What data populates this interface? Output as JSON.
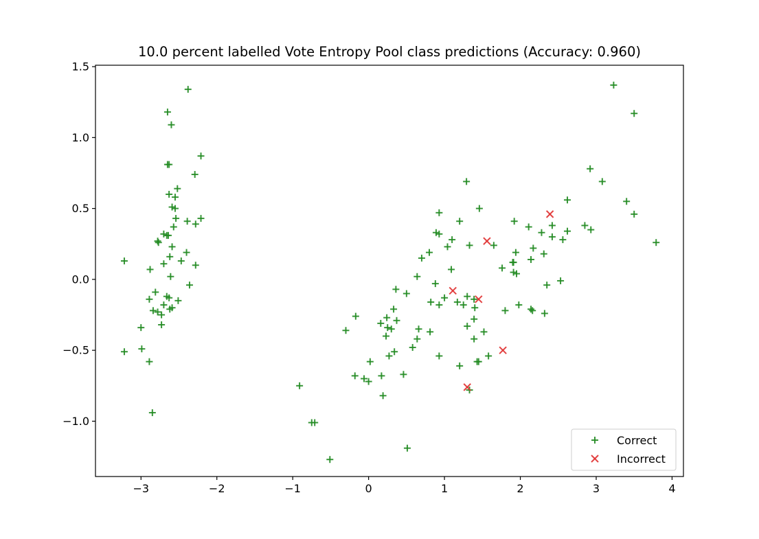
{
  "chart_data": {
    "type": "scatter",
    "title": "10.0 percent labelled Vote Entropy Pool class predictions (Accuracy: 0.960)",
    "xlabel": "",
    "ylabel": "",
    "xlim": [
      -3.6,
      4.15
    ],
    "ylim": [
      -1.39,
      1.51
    ],
    "xticks": [
      -3,
      -2,
      -1,
      0,
      1,
      2,
      3,
      4
    ],
    "xtick_labels": [
      "−3",
      "−2",
      "−1",
      "0",
      "1",
      "2",
      "3",
      "4"
    ],
    "yticks": [
      -1.0,
      -0.5,
      0.0,
      0.5,
      1.0,
      1.5
    ],
    "ytick_labels": [
      "−1.0",
      "−0.5",
      "0.0",
      "0.5",
      "1.0",
      "1.5"
    ],
    "grid": false,
    "legend_position": "lower-right",
    "series": [
      {
        "name": "Correct",
        "marker": "plus",
        "color": "#228B22",
        "points": [
          [
            -2.38,
            1.34
          ],
          [
            -2.65,
            1.18
          ],
          [
            -2.6,
            1.09
          ],
          [
            -2.21,
            0.87
          ],
          [
            -2.63,
            0.81
          ],
          [
            -2.65,
            0.81
          ],
          [
            -2.29,
            0.74
          ],
          [
            -2.52,
            0.64
          ],
          [
            -2.63,
            0.6
          ],
          [
            -2.55,
            0.58
          ],
          [
            -2.59,
            0.51
          ],
          [
            -2.55,
            0.5
          ],
          [
            -2.21,
            0.43
          ],
          [
            -2.54,
            0.43
          ],
          [
            -2.39,
            0.41
          ],
          [
            -2.28,
            0.39
          ],
          [
            -2.57,
            0.37
          ],
          [
            -2.7,
            0.32
          ],
          [
            -2.66,
            0.31
          ],
          [
            -2.64,
            0.31
          ],
          [
            -2.78,
            0.27
          ],
          [
            -2.77,
            0.26
          ],
          [
            -2.59,
            0.23
          ],
          [
            -2.4,
            0.19
          ],
          [
            -2.62,
            0.16
          ],
          [
            -2.47,
            0.13
          ],
          [
            -3.22,
            0.13
          ],
          [
            -2.7,
            0.11
          ],
          [
            -2.28,
            0.1
          ],
          [
            -2.88,
            0.07
          ],
          [
            -2.61,
            0.02
          ],
          [
            -2.36,
            -0.04
          ],
          [
            -2.81,
            -0.09
          ],
          [
            -2.66,
            -0.12
          ],
          [
            -2.63,
            -0.13
          ],
          [
            -2.89,
            -0.14
          ],
          [
            -2.51,
            -0.15
          ],
          [
            -2.7,
            -0.18
          ],
          [
            -2.59,
            -0.2
          ],
          [
            -2.62,
            -0.21
          ],
          [
            -2.84,
            -0.22
          ],
          [
            -2.78,
            -0.23
          ],
          [
            -2.73,
            -0.25
          ],
          [
            -2.73,
            -0.32
          ],
          [
            -3.0,
            -0.34
          ],
          [
            -2.99,
            -0.49
          ],
          [
            -3.22,
            -0.51
          ],
          [
            -2.89,
            -0.58
          ],
          [
            -2.85,
            -0.94
          ],
          [
            3.23,
            1.37
          ],
          [
            3.5,
            1.17
          ],
          [
            2.92,
            0.78
          ],
          [
            3.08,
            0.69
          ],
          [
            1.29,
            0.69
          ],
          [
            2.62,
            0.56
          ],
          [
            3.4,
            0.55
          ],
          [
            1.46,
            0.5
          ],
          [
            0.93,
            0.47
          ],
          [
            3.5,
            0.46
          ],
          [
            1.92,
            0.41
          ],
          [
            1.2,
            0.41
          ],
          [
            2.42,
            0.38
          ],
          [
            2.85,
            0.38
          ],
          [
            2.11,
            0.37
          ],
          [
            2.93,
            0.35
          ],
          [
            2.62,
            0.34
          ],
          [
            2.28,
            0.33
          ],
          [
            0.89,
            0.33
          ],
          [
            0.93,
            0.32
          ],
          [
            2.42,
            0.3
          ],
          [
            1.1,
            0.28
          ],
          [
            2.56,
            0.28
          ],
          [
            3.79,
            0.26
          ],
          [
            1.33,
            0.24
          ],
          [
            1.65,
            0.24
          ],
          [
            1.04,
            0.23
          ],
          [
            2.17,
            0.22
          ],
          [
            0.8,
            0.19
          ],
          [
            1.94,
            0.19
          ],
          [
            2.31,
            0.18
          ],
          [
            0.7,
            0.15
          ],
          [
            2.14,
            0.14
          ],
          [
            1.9,
            0.12
          ],
          [
            1.91,
            0.12
          ],
          [
            1.76,
            0.08
          ],
          [
            1.09,
            0.07
          ],
          [
            1.91,
            0.05
          ],
          [
            1.95,
            0.04
          ],
          [
            0.64,
            0.02
          ],
          [
            2.53,
            -0.01
          ],
          [
            0.88,
            -0.03
          ],
          [
            2.35,
            -0.04
          ],
          [
            0.36,
            -0.07
          ],
          [
            0.5,
            -0.1
          ],
          [
            1.3,
            -0.12
          ],
          [
            1.0,
            -0.13
          ],
          [
            1.39,
            -0.14
          ],
          [
            0.82,
            -0.16
          ],
          [
            1.17,
            -0.16
          ],
          [
            0.93,
            -0.18
          ],
          [
            1.98,
            -0.18
          ],
          [
            1.25,
            -0.18
          ],
          [
            1.4,
            -0.2
          ],
          [
            0.33,
            -0.21
          ],
          [
            2.14,
            -0.21
          ],
          [
            2.16,
            -0.22
          ],
          [
            1.8,
            -0.22
          ],
          [
            2.32,
            -0.24
          ],
          [
            -0.17,
            -0.26
          ],
          [
            0.24,
            -0.27
          ],
          [
            1.39,
            -0.28
          ],
          [
            0.37,
            -0.29
          ],
          [
            0.16,
            -0.31
          ],
          [
            1.3,
            -0.33
          ],
          [
            0.25,
            -0.34
          ],
          [
            0.66,
            -0.35
          ],
          [
            0.3,
            -0.35
          ],
          [
            -0.3,
            -0.36
          ],
          [
            0.81,
            -0.37
          ],
          [
            1.52,
            -0.37
          ],
          [
            0.23,
            -0.4
          ],
          [
            1.39,
            -0.42
          ],
          [
            0.64,
            -0.42
          ],
          [
            0.58,
            -0.48
          ],
          [
            0.34,
            -0.51
          ],
          [
            0.27,
            -0.54
          ],
          [
            0.93,
            -0.54
          ],
          [
            1.58,
            -0.54
          ],
          [
            1.43,
            -0.58
          ],
          [
            1.45,
            -0.58
          ],
          [
            0.02,
            -0.58
          ],
          [
            1.2,
            -0.61
          ],
          [
            0.46,
            -0.67
          ],
          [
            -0.18,
            -0.68
          ],
          [
            0.17,
            -0.68
          ],
          [
            -0.06,
            -0.7
          ],
          [
            0.0,
            -0.72
          ],
          [
            -0.91,
            -0.75
          ],
          [
            1.33,
            -0.78
          ],
          [
            0.19,
            -0.82
          ],
          [
            -0.75,
            -1.01
          ],
          [
            -0.71,
            -1.01
          ],
          [
            0.51,
            -1.19
          ],
          [
            -0.51,
            -1.27
          ]
        ]
      },
      {
        "name": "Incorrect",
        "marker": "x",
        "color": "#E03030",
        "points": [
          [
            2.39,
            0.46
          ],
          [
            1.56,
            0.27
          ],
          [
            1.11,
            -0.08
          ],
          [
            1.45,
            -0.14
          ],
          [
            1.77,
            -0.5
          ],
          [
            1.3,
            -0.76
          ]
        ]
      }
    ]
  }
}
